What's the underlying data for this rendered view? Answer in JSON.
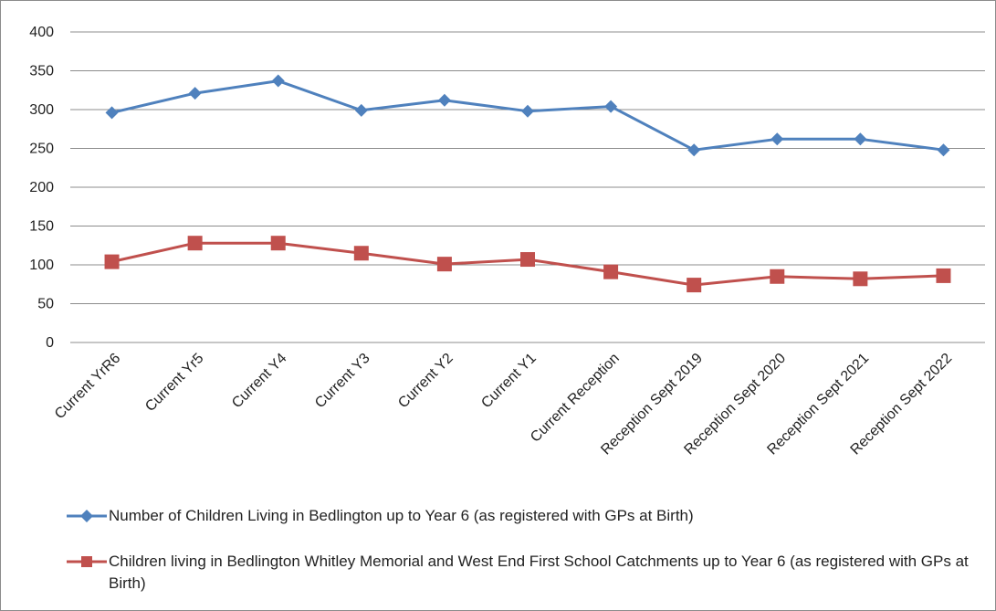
{
  "chart_data": {
    "type": "line",
    "categories": [
      "Current YrR6",
      "Current Yr5",
      "Current Y4",
      "Current Y3",
      "Current Y2",
      "Current Y1",
      "Current Reception",
      "Reception Sept 2019",
      "Reception Sept 2020",
      "Reception Sept 2021",
      "Reception Sept 2022"
    ],
    "series": [
      {
        "name": "Number of Children Living in Bedlington up to Year 6 (as registered with GPs at Birth)",
        "values": [
          296,
          321,
          337,
          299,
          312,
          298,
          304,
          248,
          262,
          262,
          248
        ],
        "color": "#4F81BD",
        "marker": "diamond"
      },
      {
        "name": " Children living in Bedlington Whitley Memorial and West End First School Catchments up to Year 6 (as registered with GPs at Birth)",
        "values": [
          104,
          128,
          128,
          115,
          101,
          107,
          91,
          74,
          85,
          82,
          86
        ],
        "color": "#C0504D",
        "marker": "square"
      }
    ],
    "yticks": [
      "400",
      "350",
      "300",
      "250",
      "200",
      "150",
      "100",
      "50",
      "0"
    ],
    "ylim": [
      0,
      400
    ],
    "grid": true,
    "legend": "bottom"
  }
}
